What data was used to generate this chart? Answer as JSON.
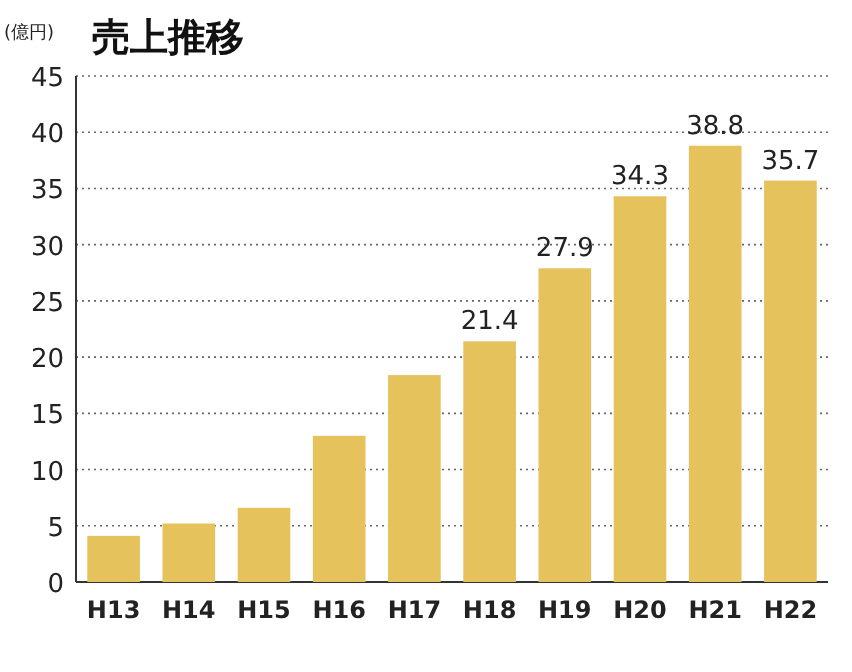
{
  "chart_data": {
    "type": "bar",
    "title": "売上推移",
    "ylabel": "(億円)",
    "categories": [
      "H13",
      "H14",
      "H15",
      "H16",
      "H17",
      "H18",
      "H19",
      "H20",
      "H21",
      "H22"
    ],
    "values": [
      4.1,
      5.2,
      6.6,
      13,
      18.4,
      21.4,
      27.9,
      34.3,
      38.8,
      35.7
    ],
    "value_labels": [
      null,
      null,
      null,
      null,
      null,
      "21.4",
      "27.9",
      "34.3",
      "38.8",
      "35.7"
    ],
    "color": "#e6c25c",
    "ylim": [
      0,
      45
    ],
    "yticks": [
      0,
      5,
      10,
      15,
      20,
      25,
      30,
      35,
      40,
      45
    ],
    "grid": "y"
  }
}
